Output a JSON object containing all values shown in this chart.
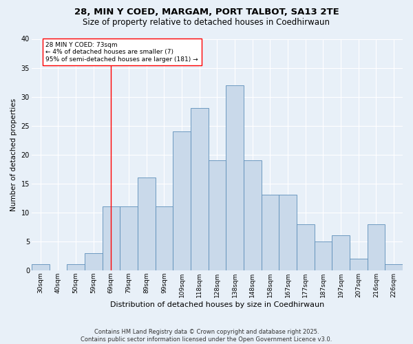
{
  "title1": "28, MIN Y COED, MARGAM, PORT TALBOT, SA13 2TE",
  "title2": "Size of property relative to detached houses in Coedhirwaun",
  "xlabel": "Distribution of detached houses by size in Coedhirwaun",
  "ylabel": "Number of detached properties",
  "categories": [
    "30sqm",
    "40sqm",
    "50sqm",
    "59sqm",
    "69sqm",
    "79sqm",
    "89sqm",
    "99sqm",
    "109sqm",
    "118sqm",
    "128sqm",
    "138sqm",
    "148sqm",
    "158sqm",
    "167sqm",
    "177sqm",
    "187sqm",
    "197sqm",
    "207sqm",
    "216sqm",
    "226sqm"
  ],
  "values": [
    1,
    0,
    1,
    3,
    11,
    11,
    16,
    11,
    24,
    28,
    19,
    32,
    19,
    13,
    13,
    8,
    5,
    6,
    2,
    8,
    1
  ],
  "bar_color": "#c9d9ea",
  "bar_edge_color": "#5b8db8",
  "red_line_index": 4,
  "annotation_text": "28 MIN Y COED: 73sqm\n← 4% of detached houses are smaller (7)\n95% of semi-detached houses are larger (181) →",
  "ylim_max": 40,
  "yticks": [
    0,
    5,
    10,
    15,
    20,
    25,
    30,
    35,
    40
  ],
  "footer": "Contains HM Land Registry data © Crown copyright and database right 2025.\nContains public sector information licensed under the Open Government Licence v3.0.",
  "bg_color": "#e8f0f8",
  "grid_color": "#ffffff"
}
